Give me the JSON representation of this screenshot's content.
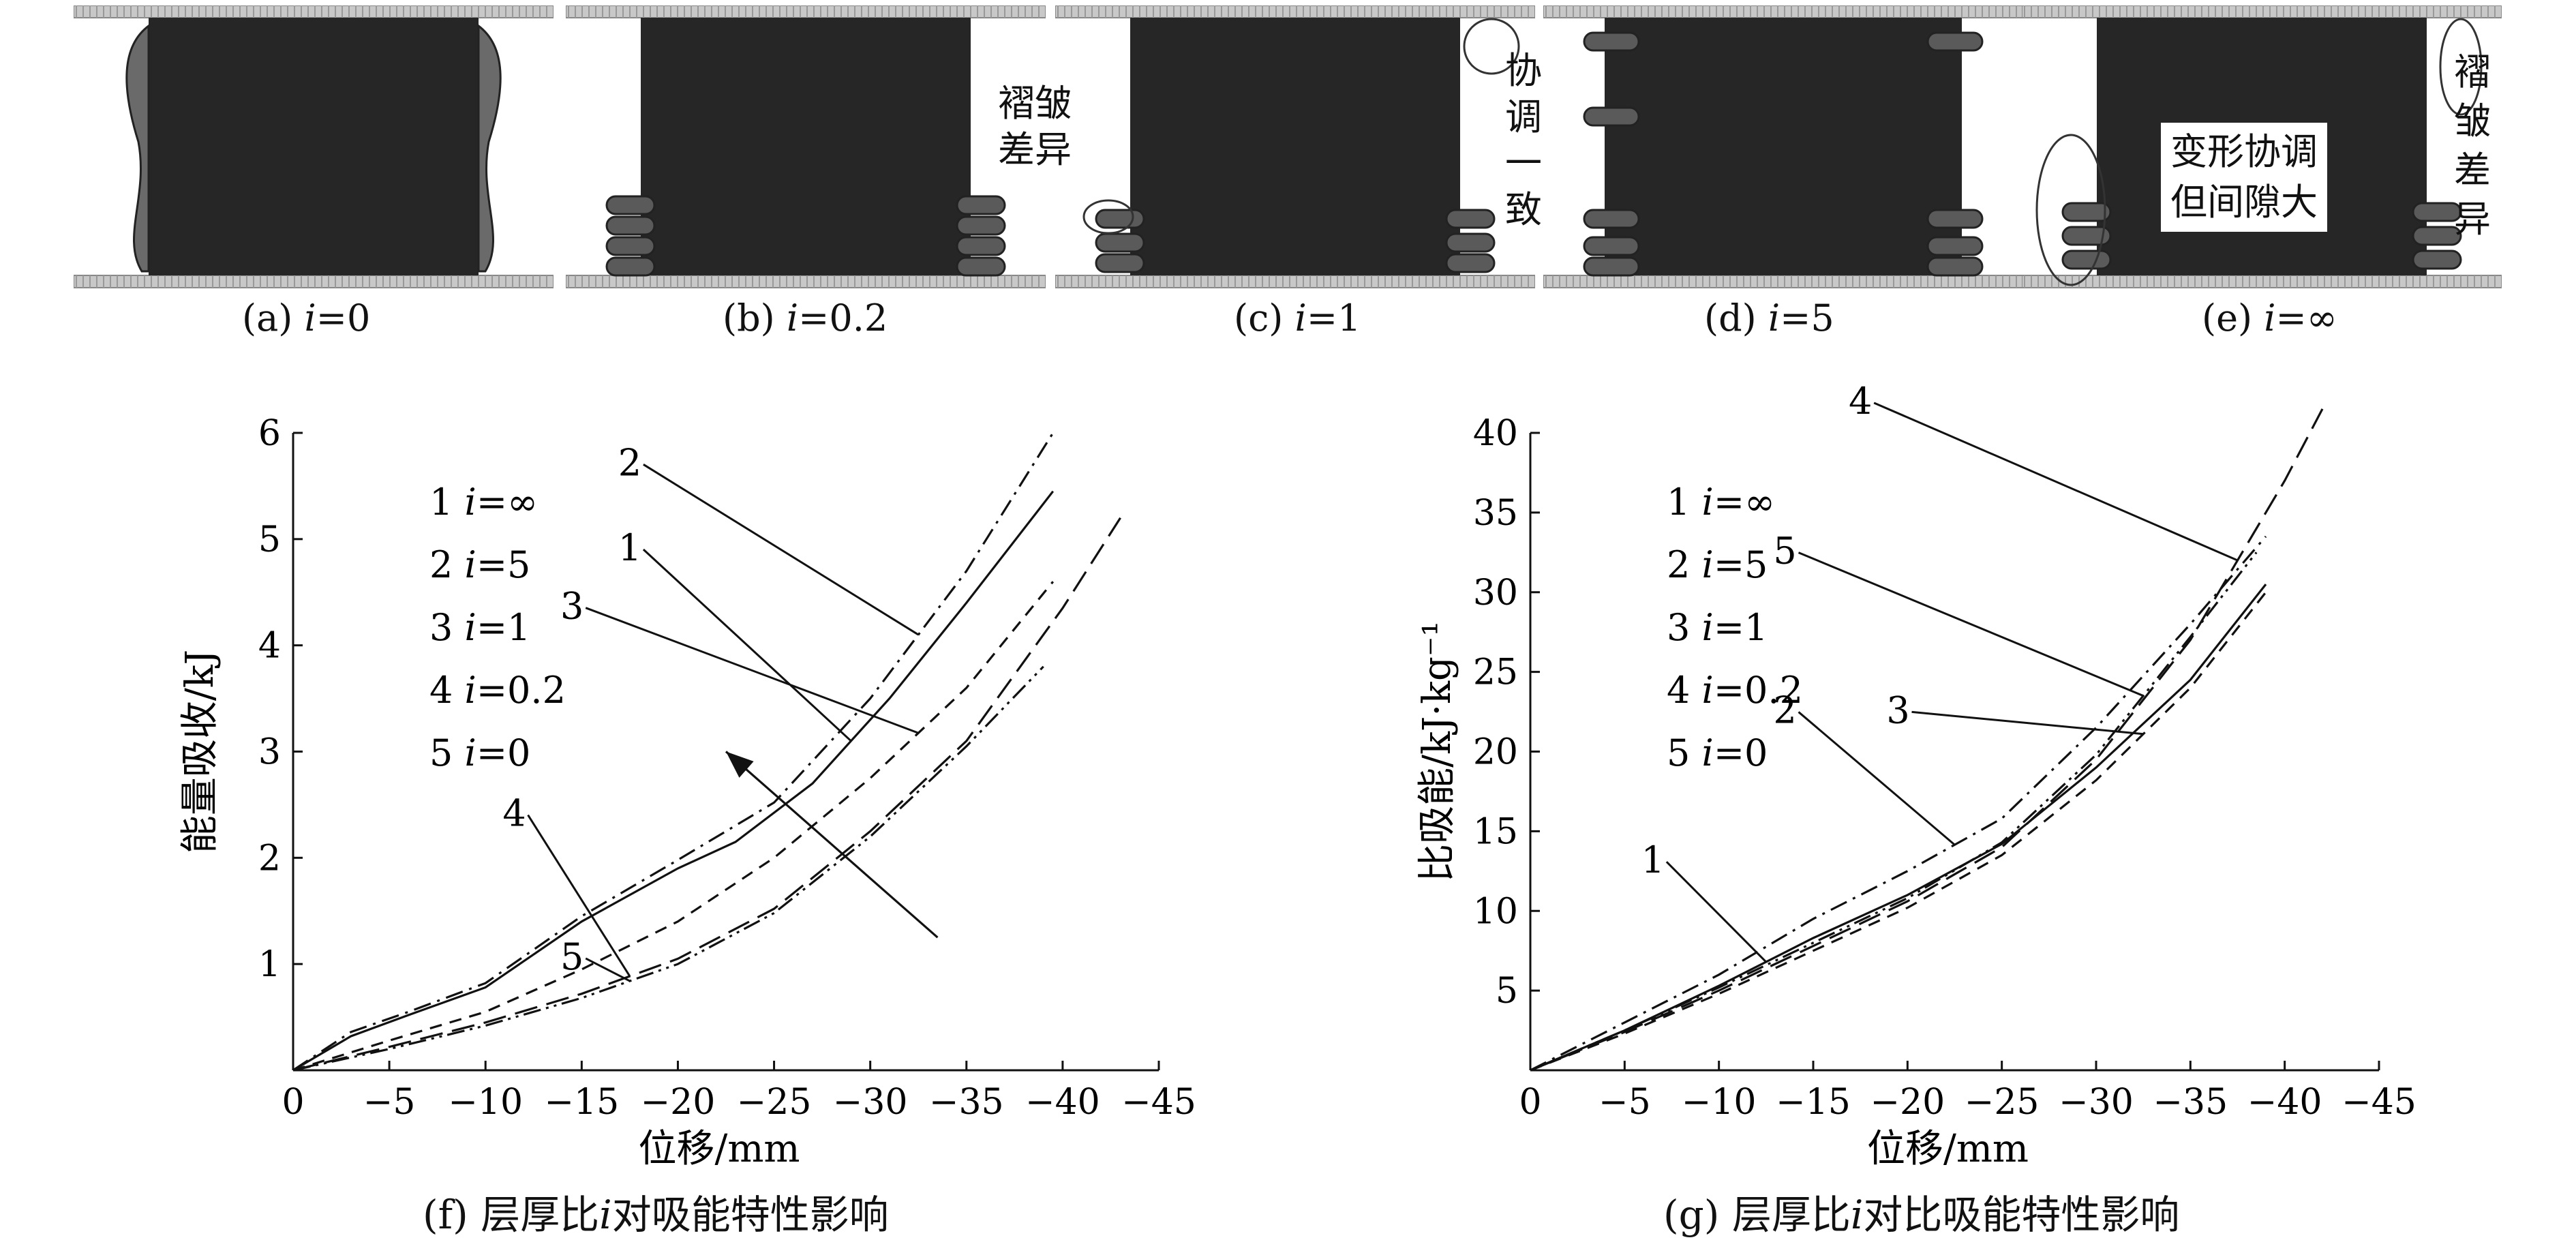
{
  "panels": [
    {
      "label": "(a) ",
      "var": "i",
      "val": "=0"
    },
    {
      "label": "(b) ",
      "var": "i",
      "val": "=0.2"
    },
    {
      "label": "(c) ",
      "var": "i",
      "val": "=1"
    },
    {
      "label": "(d) ",
      "var": "i",
      "val": "=5"
    },
    {
      "label": "(e) ",
      "var": "i",
      "val": "=∞"
    }
  ],
  "annotations": {
    "c_left": "褶皱\n差异",
    "c_right": "协\n调\n一\n致",
    "e_box": "变形协调\n但间隙大",
    "e_right": "褶\n皱\n差\n异"
  },
  "colors": {
    "panel_fill": "#262626",
    "fold": "#5a5a5a",
    "plate": "#c8c8c8"
  },
  "chart_data": [
    {
      "type": "line",
      "caption": {
        "prefix": "(f) 层厚比",
        "var": "i",
        "suffix": "对吸能特性影响"
      },
      "xlabel": "位移/mm",
      "ylabel": "能量吸收/kJ",
      "xlim": [
        0,
        -45
      ],
      "ylim": [
        0,
        6
      ],
      "xticks": [
        0,
        -5,
        -10,
        -15,
        -20,
        -25,
        -30,
        -35,
        -40,
        -45
      ],
      "yticks": [
        1,
        2,
        3,
        4,
        5,
        6
      ],
      "legend": [
        "1   i=∞",
        "2   i=5",
        "3   i=1",
        "4   i=0.2",
        "5   i=0"
      ],
      "series": [
        {
          "name": "1",
          "style": "solid",
          "x": [
            0,
            -3,
            -6,
            -10,
            -15,
            -20,
            -23,
            -27,
            -31,
            -35,
            -39.5
          ],
          "y": [
            0,
            0.32,
            0.52,
            0.78,
            1.4,
            1.9,
            2.15,
            2.7,
            3.5,
            4.4,
            5.45
          ]
        },
        {
          "name": "2",
          "style": "dashdot",
          "x": [
            0,
            -3,
            -6,
            -10,
            -15,
            -20,
            -25,
            -30,
            -35,
            -39.5
          ],
          "y": [
            0,
            0.36,
            0.55,
            0.82,
            1.45,
            1.98,
            2.52,
            3.5,
            4.7,
            6.0
          ]
        },
        {
          "name": "3",
          "style": "dash",
          "x": [
            0,
            -5,
            -10,
            -15,
            -20,
            -25,
            -30,
            -35,
            -39.5
          ],
          "y": [
            0,
            0.28,
            0.55,
            0.95,
            1.4,
            2.0,
            2.75,
            3.6,
            4.6
          ]
        },
        {
          "name": "4",
          "style": "longdash",
          "x": [
            0,
            -5,
            -10,
            -15,
            -20,
            -25,
            -30,
            -35,
            -40,
            -43
          ],
          "y": [
            0,
            0.22,
            0.45,
            0.72,
            1.05,
            1.52,
            2.25,
            3.1,
            4.35,
            5.2
          ]
        },
        {
          "name": "5",
          "style": "dashdotdot",
          "x": [
            0,
            -5,
            -10,
            -15,
            -20,
            -25,
            -30,
            -35,
            -39
          ],
          "y": [
            0,
            0.2,
            0.42,
            0.68,
            1.0,
            1.48,
            2.2,
            3.05,
            3.8
          ]
        }
      ],
      "labels": [
        "1",
        "2",
        "3",
        "4",
        "5"
      ]
    },
    {
      "type": "line",
      "caption": {
        "prefix": "(g) 层厚比",
        "var": "i",
        "suffix": "对比吸能特性影响"
      },
      "xlabel": "位移/mm",
      "ylabel": "比吸能/kJ·kg⁻¹",
      "xlim": [
        0,
        -45
      ],
      "ylim": [
        0,
        40
      ],
      "xticks": [
        0,
        -5,
        -10,
        -15,
        -20,
        -25,
        -30,
        -35,
        -40,
        -45
      ],
      "yticks": [
        5,
        10,
        15,
        20,
        25,
        30,
        35,
        40
      ],
      "legend": [
        "1   i=∞",
        "2   i=5",
        "3   i=1",
        "4   i=0.2",
        "5   i=0"
      ],
      "series": [
        {
          "name": "1",
          "style": "solid",
          "x": [
            0,
            -5,
            -10,
            -15,
            -20,
            -25,
            -30,
            -35,
            -39
          ],
          "y": [
            0,
            2.5,
            5.3,
            8.3,
            11.0,
            14.2,
            19.0,
            24.5,
            30.5
          ]
        },
        {
          "name": "2",
          "style": "dashdot",
          "x": [
            0,
            -5,
            -10,
            -15,
            -20,
            -25,
            -30,
            -35,
            -39
          ],
          "y": [
            0,
            3.0,
            6.0,
            9.5,
            12.5,
            15.8,
            21.5,
            28.0,
            33.5
          ]
        },
        {
          "name": "3",
          "style": "dash",
          "x": [
            0,
            -5,
            -10,
            -15,
            -20,
            -25,
            -30,
            -35,
            -39
          ],
          "y": [
            0,
            2.3,
            4.8,
            7.5,
            10.2,
            13.5,
            18.2,
            24.0,
            30.0
          ]
        },
        {
          "name": "4",
          "style": "longdash",
          "x": [
            0,
            -5,
            -10,
            -15,
            -20,
            -25,
            -30,
            -35,
            -40,
            -42
          ],
          "y": [
            0,
            2.4,
            5.0,
            7.8,
            10.6,
            14.0,
            19.5,
            27.0,
            37.0,
            41.5
          ]
        },
        {
          "name": "5",
          "style": "dashdotdot",
          "x": [
            0,
            -5,
            -10,
            -15,
            -20,
            -25,
            -30,
            -35,
            -38.5
          ],
          "y": [
            0,
            2.5,
            5.2,
            8.0,
            10.8,
            14.3,
            19.8,
            27.2,
            32.5
          ]
        }
      ],
      "labels": [
        "1",
        "2",
        "3",
        "4",
        "5"
      ]
    }
  ]
}
